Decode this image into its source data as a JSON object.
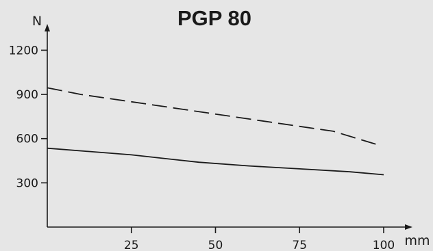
{
  "chart_data": {
    "type": "line",
    "title": "PGP 80",
    "xlabel": "mm",
    "ylabel": "N",
    "xlim": [
      0,
      110
    ],
    "ylim": [
      0,
      1300
    ],
    "xticks": [
      25,
      50,
      75,
      100
    ],
    "yticks": [
      300,
      600,
      900,
      1200
    ],
    "grid": false,
    "legend": "none",
    "colors": {
      "background": "#e6e6e6",
      "line": "#1a1a1a"
    },
    "series": [
      {
        "style": "dashed",
        "x": [
          0,
          10,
          25,
          40,
          55,
          70,
          85,
          98
        ],
        "y": [
          945,
          900,
          850,
          800,
          750,
          700,
          650,
          560
        ]
      },
      {
        "style": "solid",
        "x": [
          0,
          25,
          45,
          60,
          75,
          90,
          100
        ],
        "y": [
          535,
          490,
          440,
          415,
          395,
          375,
          355
        ]
      }
    ]
  }
}
